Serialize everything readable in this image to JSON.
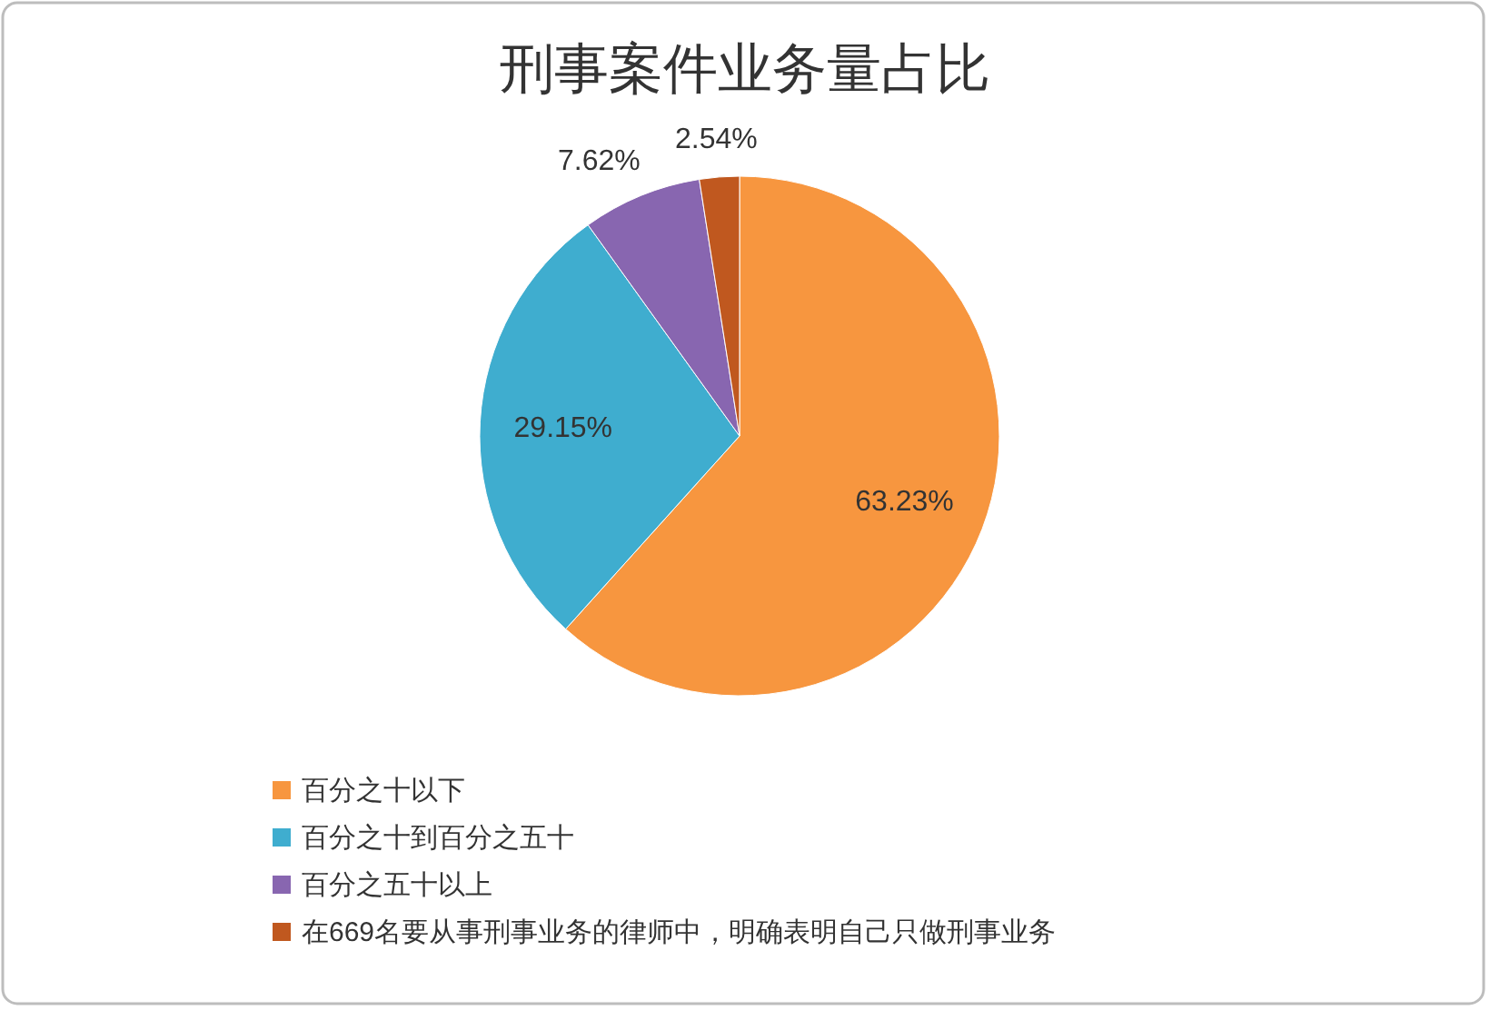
{
  "chart_data": {
    "type": "pie",
    "title": "刑事案件业务量占比",
    "categories": [
      "百分之十以下",
      "百分之十到百分之五十",
      "百分之五十以上",
      "在669名要从事刑事业务的律师中，明确表明自己只做刑事业务"
    ],
    "values": [
      63.23,
      29.15,
      7.62,
      2.54
    ],
    "colors": [
      "#f7963f",
      "#3fadcf",
      "#8866b0",
      "#c0581f"
    ],
    "value_labels": [
      "63.23%",
      "29.15%",
      "7.62%",
      "2.54%"
    ],
    "legend": "bottom left"
  }
}
